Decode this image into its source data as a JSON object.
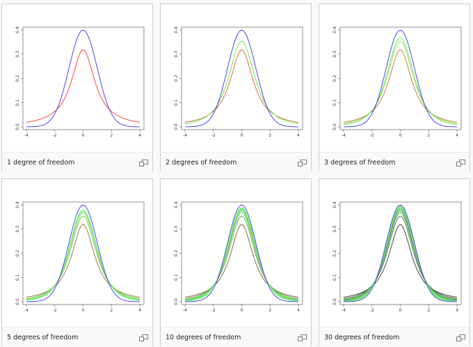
{
  "gallery": {
    "enlarge_icon": "magnify-clip-icon",
    "colors": {
      "normal": "#3b2df0",
      "df1": "#ff3030",
      "green": "#44ee44",
      "caption_bg": "#f8f9fa",
      "border": "#c8ccd1"
    },
    "items": [
      {
        "caption": "1 degree of freedom",
        "df_curves": [
          1
        ],
        "palette": [
          "#ff3030"
        ]
      },
      {
        "caption": "2 degrees of freedom",
        "df_curves": [
          1,
          2
        ],
        "palette": [
          "#dd5a30",
          "#55ee33"
        ]
      },
      {
        "caption": "3 degrees of freedom",
        "df_curves": [
          1,
          2,
          3
        ],
        "palette": [
          "#c86a30",
          "#88dd33",
          "#55ee55"
        ]
      },
      {
        "caption": "5 degrees of freedom",
        "df_curves": [
          1,
          2,
          3,
          4,
          5
        ],
        "palette": [
          "#9a6a3a",
          "#70c040",
          "#66dd55",
          "#66ee66",
          "#77f277"
        ]
      },
      {
        "caption": "10 degrees of freedom",
        "df_curves": [
          1,
          2,
          3,
          4,
          5,
          6,
          7,
          8,
          9,
          10
        ],
        "palette": [
          "#805038",
          "#6a9a44",
          "#60c050",
          "#5fd45a",
          "#64e064",
          "#6ae86a",
          "#70ee70",
          "#78f278",
          "#82f482",
          "#90f690"
        ]
      },
      {
        "caption": "30 degrees of freedom",
        "df_curves": [
          1,
          2,
          3,
          4,
          5,
          6,
          8,
          10,
          15,
          20,
          25,
          30
        ],
        "palette": [
          "#303030",
          "#406040",
          "#508a50",
          "#56a856",
          "#5cc05c",
          "#60d060",
          "#66dc66",
          "#6ee46e",
          "#76ea76",
          "#80ee80",
          "#8af28a",
          "#96f596"
        ]
      }
    ]
  },
  "chart_data": [
    {
      "type": "line",
      "title": "",
      "xlabel": "",
      "ylabel": "",
      "xlim": [
        -4,
        4
      ],
      "ylim": [
        0,
        0.4
      ],
      "x_ticks": [
        "-4",
        "-2",
        "0",
        "2",
        "4"
      ],
      "y_ticks": [
        "0.0",
        "0.1",
        "0.2",
        "0.3",
        "0.4"
      ],
      "series": [
        {
          "dist": "normal",
          "peak": 0.399
        },
        {
          "dist": "t",
          "df": 1,
          "peak": 0.318
        }
      ]
    },
    {
      "type": "line",
      "title": "",
      "xlabel": "",
      "ylabel": "",
      "xlim": [
        -4,
        4
      ],
      "ylim": [
        0,
        0.4
      ],
      "x_ticks": [
        "-4",
        "-2",
        "0",
        "2",
        "4"
      ],
      "y_ticks": [
        "0.0",
        "0.1",
        "0.2",
        "0.3",
        "0.4"
      ],
      "series": [
        {
          "dist": "normal",
          "peak": 0.399
        },
        {
          "dist": "t",
          "df": 1,
          "peak": 0.318
        },
        {
          "dist": "t",
          "df": 2,
          "peak": 0.354
        }
      ]
    },
    {
      "type": "line",
      "title": "",
      "xlabel": "",
      "ylabel": "",
      "xlim": [
        -4,
        4
      ],
      "ylim": [
        0,
        0.4
      ],
      "x_ticks": [
        "-4",
        "-2",
        "0",
        "2",
        "4"
      ],
      "y_ticks": [
        "0.0",
        "0.1",
        "0.2",
        "0.3",
        "0.4"
      ],
      "series": [
        {
          "dist": "normal",
          "peak": 0.399
        },
        {
          "dist": "t",
          "df": 1,
          "peak": 0.318
        },
        {
          "dist": "t",
          "df": 2,
          "peak": 0.354
        },
        {
          "dist": "t",
          "df": 3,
          "peak": 0.368
        }
      ]
    },
    {
      "type": "line",
      "title": "",
      "xlabel": "",
      "ylabel": "",
      "xlim": [
        -4,
        4
      ],
      "ylim": [
        0,
        0.4
      ],
      "x_ticks": [
        "-4",
        "-2",
        "0",
        "2",
        "4"
      ],
      "y_ticks": [
        "0.0",
        "0.1",
        "0.2",
        "0.3",
        "0.4"
      ],
      "series": [
        {
          "dist": "normal",
          "peak": 0.399
        },
        {
          "dist": "t",
          "df": 1,
          "peak": 0.318
        },
        {
          "dist": "t",
          "df": 2,
          "peak": 0.354
        },
        {
          "dist": "t",
          "df": 3,
          "peak": 0.368
        },
        {
          "dist": "t",
          "df": 4,
          "peak": 0.375
        },
        {
          "dist": "t",
          "df": 5,
          "peak": 0.38
        }
      ]
    },
    {
      "type": "line",
      "title": "",
      "xlabel": "",
      "ylabel": "",
      "xlim": [
        -4,
        4
      ],
      "ylim": [
        0,
        0.4
      ],
      "x_ticks": [
        "-4",
        "-2",
        "0",
        "2",
        "4"
      ],
      "y_ticks": [
        "0.0",
        "0.1",
        "0.2",
        "0.3",
        "0.4"
      ],
      "series": [
        {
          "dist": "normal",
          "peak": 0.399
        },
        {
          "dist": "t",
          "df": 1,
          "peak": 0.318
        },
        {
          "dist": "t",
          "df": 5,
          "peak": 0.38
        },
        {
          "dist": "t",
          "df": 10,
          "peak": 0.389
        }
      ]
    },
    {
      "type": "line",
      "title": "",
      "xlabel": "",
      "ylabel": "",
      "xlim": [
        -4,
        4
      ],
      "ylim": [
        0,
        0.4
      ],
      "x_ticks": [
        "-4",
        "-2",
        "0",
        "2",
        "4"
      ],
      "y_ticks": [
        "0.0",
        "0.1",
        "0.2",
        "0.3",
        "0.4"
      ],
      "series": [
        {
          "dist": "normal",
          "peak": 0.399
        },
        {
          "dist": "t",
          "df": 1,
          "peak": 0.318
        },
        {
          "dist": "t",
          "df": 10,
          "peak": 0.389
        },
        {
          "dist": "t",
          "df": 30,
          "peak": 0.396
        }
      ]
    }
  ]
}
